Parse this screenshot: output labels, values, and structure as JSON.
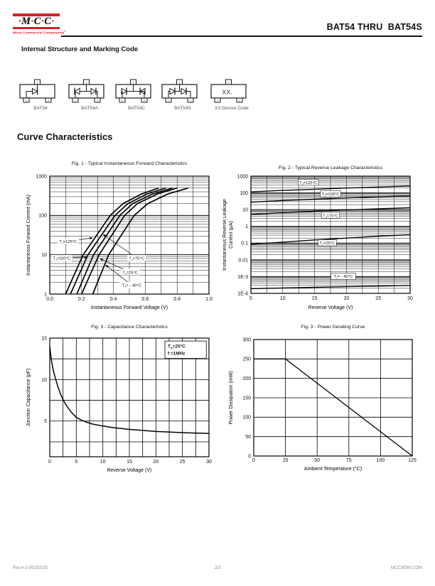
{
  "header": {
    "brand": {
      "letters": "·M·C·C·",
      "tagline": "Micro Commercial Components",
      "reg": "®",
      "accent": "#d71f26"
    },
    "title": "BAT54 THRU  BAT54S"
  },
  "sections": {
    "structure_heading": "Internal Structure and Marking Code",
    "curves_heading": "Curve Characteristics"
  },
  "pin_labels": [
    "1",
    "2",
    "3"
  ],
  "packages": [
    {
      "caption": "BAT54",
      "type": "single"
    },
    {
      "caption": "BAT54A",
      "type": "common-anode"
    },
    {
      "caption": "BAT54C",
      "type": "common-cathode"
    },
    {
      "caption": "BAT54S",
      "type": "series"
    },
    {
      "caption": "XX:Device Code",
      "type": "marking",
      "marking_text": "XX."
    }
  ],
  "footer": {
    "rev": "Rev.4-2-09152025",
    "page": "2/3",
    "site": "MCCSEMI.COM"
  },
  "chart_data": [
    {
      "id": "fig1",
      "type": "line",
      "title": "Fig. 1 - Typical Instantaneous Forward Characteristics",
      "xlabel": "Instantaneous Forward Voltage (V)",
      "ylabel": "Instantaneous Forward Current (mA)",
      "x_scale": "linear",
      "y_scale": "log",
      "xlim": [
        0,
        1
      ],
      "ylim": [
        1,
        1000
      ],
      "x_grid_step": 0.1,
      "grid": "on",
      "legend": "inline-labels",
      "xtick_vals": [
        0,
        0.2,
        0.4,
        0.6,
        0.8,
        1.0
      ],
      "xtick_labels": [
        "0.0",
        "0.2",
        "0.4",
        "0.6",
        "0.8",
        "1.0"
      ],
      "ytick_vals": [
        1,
        10,
        100,
        1000
      ],
      "ytick_labels": [
        "1",
        "10",
        "100",
        "1000"
      ],
      "series": [
        {
          "name": "T[J]=125°C",
          "x": [
            0.1,
            0.152,
            0.21,
            0.291,
            0.38,
            0.46,
            0.575,
            0.685
          ],
          "y": [
            1,
            3,
            10,
            30,
            100,
            200,
            350,
            500
          ]
        },
        {
          "name": "T[J]=100°C",
          "x": [
            0.13,
            0.182,
            0.24,
            0.321,
            0.41,
            0.49,
            0.61,
            0.73
          ],
          "y": [
            1,
            3,
            10,
            30,
            100,
            200,
            350,
            500
          ]
        },
        {
          "name": "T[J]=75°C",
          "x": [
            0.17,
            0.22,
            0.275,
            0.354,
            0.44,
            0.52,
            0.645,
            0.77
          ],
          "y": [
            1,
            3,
            10,
            30,
            100,
            200,
            350,
            500
          ]
        },
        {
          "name": "T[J]=25°C",
          "x": [
            0.2,
            0.252,
            0.31,
            0.386,
            0.47,
            0.55,
            0.675,
            0.8
          ],
          "y": [
            1,
            3,
            10,
            30,
            100,
            200,
            350,
            500
          ]
        },
        {
          "name": "T[J]= - 40°C",
          "x": [
            0.27,
            0.318,
            0.37,
            0.446,
            0.53,
            0.615,
            0.74,
            0.87
          ],
          "y": [
            1,
            3,
            10,
            30,
            100,
            200,
            350,
            500
          ]
        }
      ],
      "labels": [
        {
          "text": "T[J]=125°C",
          "x": 0.115,
          "y": 22,
          "ax": 0.27,
          "ay": 27
        },
        {
          "text": "T[J]=100°C",
          "x": 0.075,
          "y": 8.3,
          "ax": 0.235,
          "ay": 8.8
        },
        {
          "text": "T[J]=75°C",
          "x": 0.545,
          "y": 8.3,
          "ax": 0.335,
          "ay": 33
        },
        {
          "text": "T[J]=25°C",
          "x": 0.505,
          "y": 3.6,
          "ax": 0.315,
          "ay": 8.0
        },
        {
          "text": "T[J]= - 40°C",
          "x": 0.515,
          "y": 1.7,
          "ax": 0.35,
          "ay": 5.5
        }
      ]
    },
    {
      "id": "fig2",
      "type": "line",
      "title": "Fig. 2 - Typical Reverse Leakage Characteristics",
      "xlabel": "Reverse Voltage (V)",
      "ylabel_lines": [
        "Instantaneous Reverse Leakage",
        "Current (µA)"
      ],
      "x_scale": "linear",
      "y_scale": "log",
      "xlim": [
        5,
        30
      ],
      "ylim": [
        0.0001,
        1000
      ],
      "x_grid_step": 2.5,
      "grid": "on",
      "legend": "inline-labels",
      "xtick_vals": [
        5,
        10,
        15,
        20,
        25,
        30
      ],
      "xtick_labels": [
        "5",
        "10",
        "15",
        "20",
        "25",
        "30"
      ],
      "ytick_vals": [
        1000,
        100,
        10,
        1,
        0.1,
        0.01,
        0.001,
        0.0001
      ],
      "ytick_labels": [
        "1000",
        "100",
        "10",
        "1",
        "0.1",
        "0.01",
        "1E-3",
        "1E-4"
      ],
      "series": [
        {
          "name": "T[J]=125°C",
          "x": [
            5,
            10,
            15,
            20,
            25,
            30
          ],
          "y": [
            115,
            140,
            165,
            195,
            225,
            260
          ]
        },
        {
          "name": "T[J]=100°C",
          "x": [
            5,
            10,
            15,
            20,
            25,
            30
          ],
          "y": [
            28,
            35,
            42,
            50,
            58,
            67
          ]
        },
        {
          "name": "T[J]=75°C",
          "x": [
            5,
            10,
            15,
            20,
            25,
            30
          ],
          "y": [
            5.2,
            6.5,
            8.0,
            9.6,
            11.2,
            13.0
          ]
        },
        {
          "name": "T[J]=25°C",
          "x": [
            5,
            10,
            15,
            20,
            25,
            30
          ],
          "y": [
            0.085,
            0.115,
            0.155,
            0.2,
            0.26,
            0.32
          ]
        },
        {
          "name": "T[J]= - 40°C",
          "x": [
            5,
            10,
            15,
            20,
            25,
            30
          ],
          "y": [
            0.00019,
            0.00021,
            0.00023,
            0.00025,
            0.00027,
            0.0003
          ]
        }
      ],
      "labels": [
        {
          "text": "T[J]=125°C",
          "x": 14,
          "y": 430,
          "boxed": true
        },
        {
          "text": "T[J]=100°C",
          "x": 17.5,
          "y": 88,
          "boxed": true
        },
        {
          "text": "T[J]=75°C",
          "x": 17.5,
          "y": 4.6,
          "boxed": true
        },
        {
          "text": "T[J]=25°C",
          "x": 17,
          "y": 0.105,
          "boxed": true
        },
        {
          "text": "T[J]= - 40°C",
          "x": 19.5,
          "y": 0.00105,
          "boxed": true
        }
      ]
    },
    {
      "id": "fig3",
      "type": "line",
      "title": "Fig. 3 - Capacitance Characteristics",
      "xlabel": "Reverse Voltage (V)",
      "ylabel": "Junction Capacitance (pF)",
      "x_scale": "linear",
      "y_scale": "linear",
      "xlim": [
        0,
        30
      ],
      "ylim": [
        0.7,
        15
      ],
      "x_grid_step": 2.5,
      "y_grid_step": 2.5,
      "grid": "on",
      "xtick_vals": [
        0,
        5,
        10,
        15,
        20,
        25,
        30
      ],
      "xtick_labels": [
        "0",
        "5",
        "10",
        "15",
        "20",
        "25",
        "30"
      ],
      "ytick_vals": [
        5,
        10,
        15
      ],
      "ytick_labels": [
        "5",
        "10",
        "15"
      ],
      "series": [
        {
          "name": "Junction Capacitance",
          "x": [
            0,
            0.3,
            0.7,
            1,
            1.5,
            2,
            2.5,
            3,
            4,
            5,
            6,
            7,
            8,
            10,
            12,
            15,
            18,
            20,
            25,
            30
          ],
          "y": [
            14.0,
            12.4,
            11.0,
            10.3,
            9.2,
            8.3,
            7.6,
            7.0,
            6.1,
            5.45,
            5.1,
            4.85,
            4.65,
            4.4,
            4.2,
            4.0,
            3.85,
            3.75,
            3.6,
            3.5
          ]
        }
      ],
      "note": {
        "lines": [
          "T[A]=25°C",
          "f =1MHz"
        ],
        "x0": 21.7,
        "x1": 29.5,
        "y0": 12.55,
        "y1": 14.65
      }
    },
    {
      "id": "fig4",
      "type": "line",
      "title": "Fig. 3 - Power Derating Curve",
      "xlabel": "Ambient Temperature (°C)",
      "ylabel": "Power Dissipation  (mW)",
      "x_scale": "linear",
      "y_scale": "linear",
      "xlim": [
        0,
        125
      ],
      "ylim": [
        0,
        300
      ],
      "x_grid_step": 25,
      "y_grid_step": 50,
      "grid": "on",
      "xtick_vals": [
        0,
        25,
        50,
        75,
        100,
        125
      ],
      "xtick_labels": [
        "0",
        "25",
        "50",
        "75",
        "100",
        "125"
      ],
      "ytick_vals": [
        0,
        50,
        100,
        150,
        200,
        250,
        300
      ],
      "ytick_labels": [
        "0",
        "50",
        "100",
        "150",
        "200",
        "250",
        "300"
      ],
      "series": [
        {
          "name": "Power Derating",
          "x": [
            0,
            25,
            125
          ],
          "y": [
            250,
            250,
            0
          ]
        }
      ]
    }
  ]
}
